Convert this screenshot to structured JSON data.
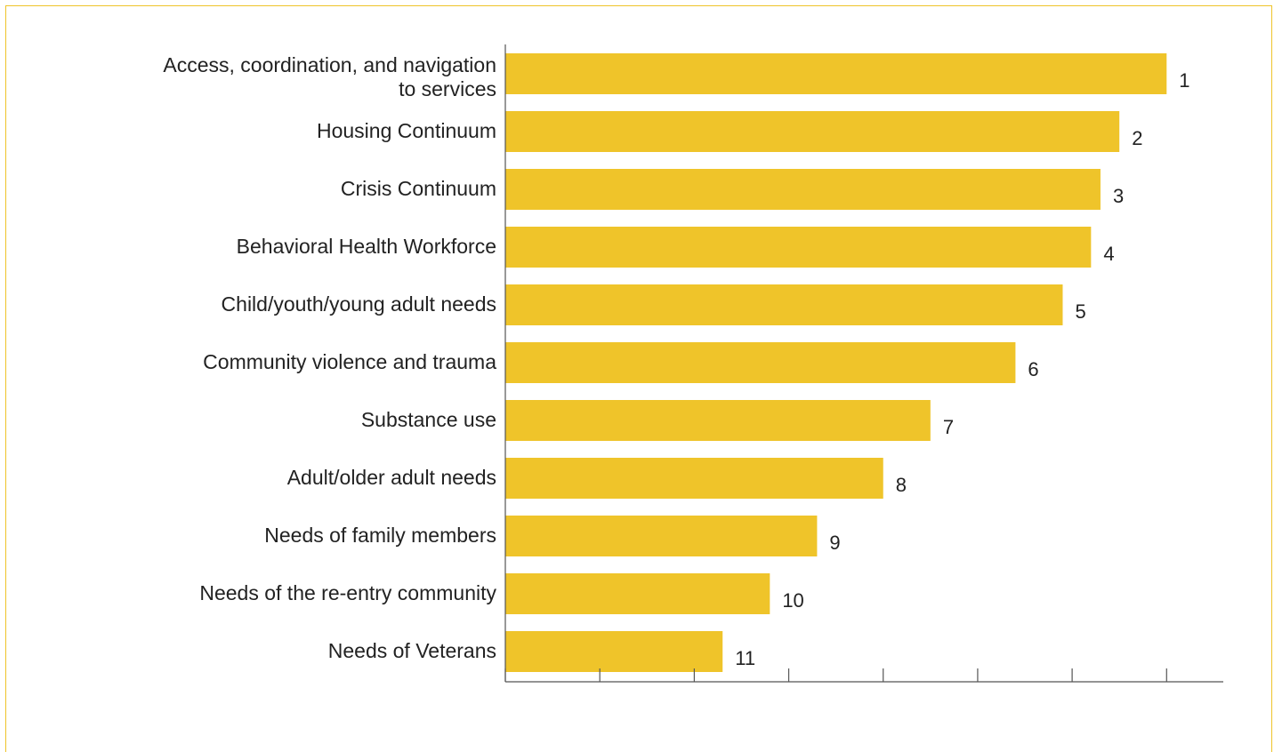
{
  "chart_data": {
    "type": "bar",
    "orientation": "horizontal",
    "categories": [
      [
        "Access, coordination, and navigation",
        "to services"
      ],
      [
        "Housing Continuum"
      ],
      [
        "Crisis Continuum"
      ],
      [
        "Behavioral Health  Workforce"
      ],
      [
        "Child/youth/young adult needs"
      ],
      [
        "Community violence and trauma"
      ],
      [
        "Substance use"
      ],
      [
        "Adult/older adult needs"
      ],
      [
        "Needs of family members"
      ],
      [
        "Needs of the re-entry community"
      ],
      [
        "Needs of Veterans"
      ]
    ],
    "values": [
      70,
      65,
      63,
      62,
      59,
      54,
      45,
      40,
      33,
      28,
      23
    ],
    "data_labels": [
      "1",
      "2",
      "3",
      "4",
      "5",
      "6",
      "7",
      "8",
      "9",
      "10",
      "11"
    ],
    "xlim": [
      0,
      76
    ],
    "x_tick_values": [
      0,
      10,
      20,
      30,
      40,
      50,
      60,
      70
    ],
    "title": "",
    "xlabel": "",
    "ylabel": "",
    "grid": false,
    "legend": "none"
  },
  "colors": {
    "bar": "#efc42a",
    "frame": "#efc42a",
    "axis": "#555555",
    "text": "#222222"
  }
}
